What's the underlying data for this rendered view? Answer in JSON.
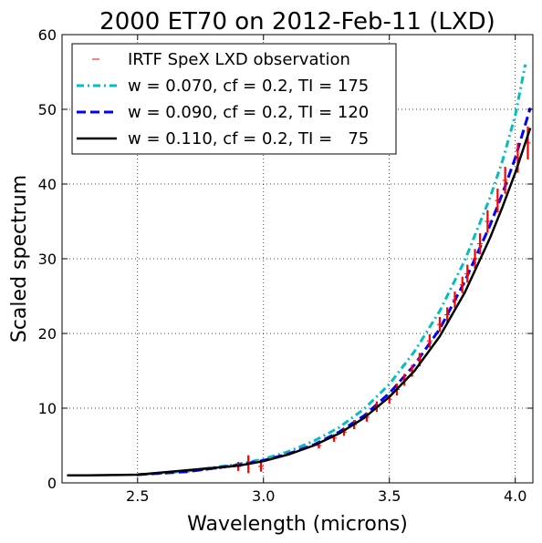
{
  "chart_data": {
    "type": "line",
    "title": "2000 ET70 on 2012-Feb-11 (LXD)",
    "xlabel": "Wavelength (microns)",
    "ylabel": "Scaled spectrum",
    "xlim": [
      2.2,
      4.07
    ],
    "ylim": [
      0,
      60
    ],
    "x_ticks": [
      2.5,
      3.0,
      3.5,
      4.0
    ],
    "x_tick_labels": [
      "2.5",
      "3.0",
      "3.5",
      "4.0"
    ],
    "y_ticks": [
      0,
      10,
      20,
      30,
      40,
      50,
      60
    ],
    "y_tick_labels": [
      "0",
      "10",
      "20",
      "30",
      "40",
      "50",
      "60"
    ],
    "grid": true,
    "legend_position": "top-left",
    "series": [
      {
        "name": "IRTF SpeX LXD observation",
        "style": "errorbars",
        "color": "#ff0000",
        "x": [
          2.9,
          2.94,
          2.99,
          3.22,
          3.28,
          3.32,
          3.36,
          3.41,
          3.45,
          3.5,
          3.53,
          3.56,
          3.59,
          3.62,
          3.66,
          3.7,
          3.73,
          3.76,
          3.79,
          3.81,
          3.84,
          3.86,
          3.89,
          3.93,
          3.96,
          4.01,
          4.05
        ],
        "y": [
          2.2,
          2.5,
          2.2,
          5.0,
          6.0,
          6.8,
          7.8,
          8.8,
          10.2,
          11.2,
          12.5,
          13.8,
          15.0,
          16.5,
          19.0,
          21.2,
          22.5,
          24.5,
          26.5,
          28.0,
          30.0,
          32.0,
          35.0,
          37.8,
          40.5,
          43.5,
          45.5
        ],
        "err": [
          0.6,
          1.2,
          0.7,
          0.4,
          0.5,
          0.5,
          0.6,
          0.6,
          0.7,
          0.6,
          0.8,
          0.8,
          0.8,
          0.9,
          0.9,
          1.0,
          1.0,
          1.1,
          1.1,
          1.2,
          1.3,
          1.4,
          1.5,
          1.6,
          1.8,
          2.0,
          2.2
        ]
      },
      {
        "name": "w = 0.070, cf = 0.2, TI = 175",
        "style": "dash-dot",
        "color": "#00bfbf",
        "x": [
          2.5,
          2.7,
          2.9,
          3.0,
          3.1,
          3.2,
          3.3,
          3.4,
          3.5,
          3.6,
          3.7,
          3.8,
          3.9,
          3.95,
          4.0,
          4.04
        ],
        "y": [
          1.1,
          1.6,
          2.5,
          3.2,
          4.2,
          5.6,
          7.4,
          9.9,
          13.2,
          17.6,
          23.0,
          29.8,
          38.2,
          43.2,
          49.2,
          56.0
        ]
      },
      {
        "name": "w = 0.090, cf = 0.2, TI = 120",
        "style": "dashed",
        "color": "#0000ff",
        "x": [
          2.5,
          2.7,
          2.9,
          3.0,
          3.1,
          3.2,
          3.3,
          3.4,
          3.5,
          3.6,
          3.7,
          3.8,
          3.9,
          3.95,
          4.0,
          4.06
        ],
        "y": [
          1.1,
          1.5,
          2.4,
          3.0,
          3.9,
          5.1,
          6.8,
          9.0,
          12.0,
          15.8,
          20.6,
          27.0,
          34.5,
          38.8,
          43.5,
          50.2
        ]
      },
      {
        "name": "w = 0.110, cf = 0.2, TI =   75",
        "style": "solid",
        "color": "#000000",
        "x": [
          2.22,
          2.3,
          2.4,
          2.5,
          2.9,
          3.0,
          3.1,
          3.2,
          3.3,
          3.4,
          3.5,
          3.6,
          3.7,
          3.8,
          3.9,
          3.95,
          4.0,
          4.06
        ],
        "y": [
          1.0,
          1.0,
          1.05,
          1.1,
          2.3,
          2.9,
          3.8,
          5.0,
          6.6,
          8.7,
          11.5,
          15.0,
          19.6,
          25.5,
          32.8,
          37.0,
          41.5,
          47.5
        ]
      },
      {
        "style": "dotted",
        "color": "#000000",
        "x": [
          2.5,
          2.6,
          2.7,
          2.8,
          2.9
        ],
        "y": [
          1.1,
          1.3,
          1.55,
          1.9,
          2.3
        ]
      }
    ]
  }
}
